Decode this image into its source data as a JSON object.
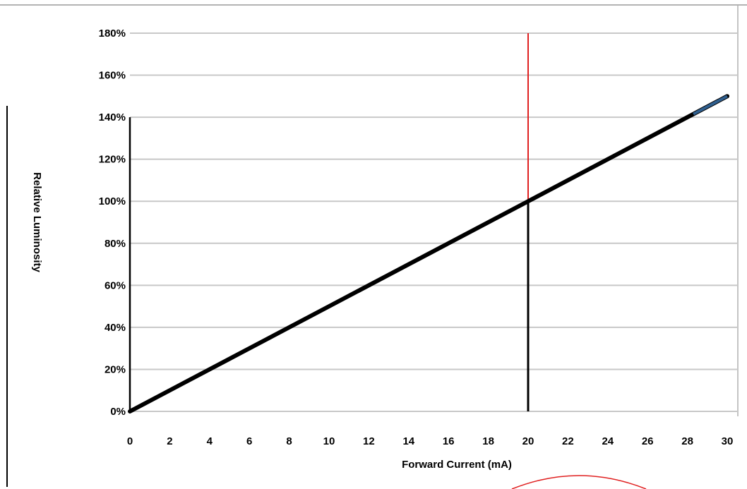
{
  "chart_data": {
    "type": "line",
    "xlabel": "Forward Current (mA)",
    "ylabel": "Relative Luminosity",
    "xlim": [
      0,
      30
    ],
    "ylim": [
      0,
      180
    ],
    "x_ticks": [
      "0",
      "2",
      "4",
      "6",
      "8",
      "10",
      "12",
      "14",
      "16",
      "18",
      "20",
      "22",
      "24",
      "26",
      "28",
      "30"
    ],
    "y_ticks": [
      "0%",
      "20%",
      "40%",
      "60%",
      "80%",
      "100%",
      "120%",
      "140%",
      "160%",
      "180%"
    ],
    "grid": true,
    "series": [
      {
        "x": [
          0,
          5,
          10,
          15,
          20,
          25,
          30
        ],
        "y": [
          0,
          25,
          50,
          75,
          100,
          125,
          150
        ]
      }
    ],
    "reference_line": {
      "x": 20
    },
    "colors": {
      "line": "#000000",
      "line_tail": "#2f5f8f",
      "grid": "#c8c8c8",
      "ref_top": "#e02020",
      "annotation": "#e02020"
    }
  }
}
